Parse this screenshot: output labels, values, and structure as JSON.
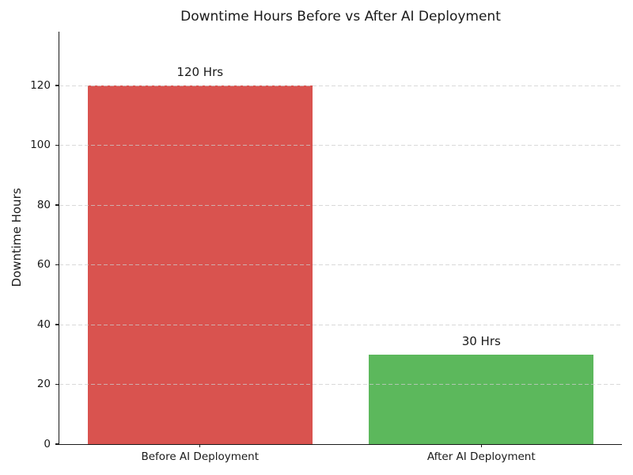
{
  "chart_data": {
    "type": "bar",
    "title": "Downtime Hours Before vs After AI Deployment",
    "categories": [
      "Before AI Deployment",
      "After AI Deployment"
    ],
    "values": [
      120,
      30
    ],
    "bar_labels": [
      "120 Hrs",
      "30 Hrs"
    ],
    "bar_colors": [
      "#d9534f",
      "#5cb85c"
    ],
    "xlabel": "",
    "ylabel": "Downtime Hours",
    "yticks": [
      0,
      20,
      40,
      60,
      80,
      100,
      120
    ],
    "ylim": [
      0,
      138
    ],
    "bar_width_fraction": 0.8,
    "grid": {
      "axis": "y",
      "style": "dashed",
      "color": "#cccccc",
      "on": true,
      "above_bars": true
    },
    "legend": "none",
    "background_color": "#ffffff",
    "text_color": "#1a1a1a",
    "spines_visible": [
      "left",
      "bottom"
    ]
  }
}
